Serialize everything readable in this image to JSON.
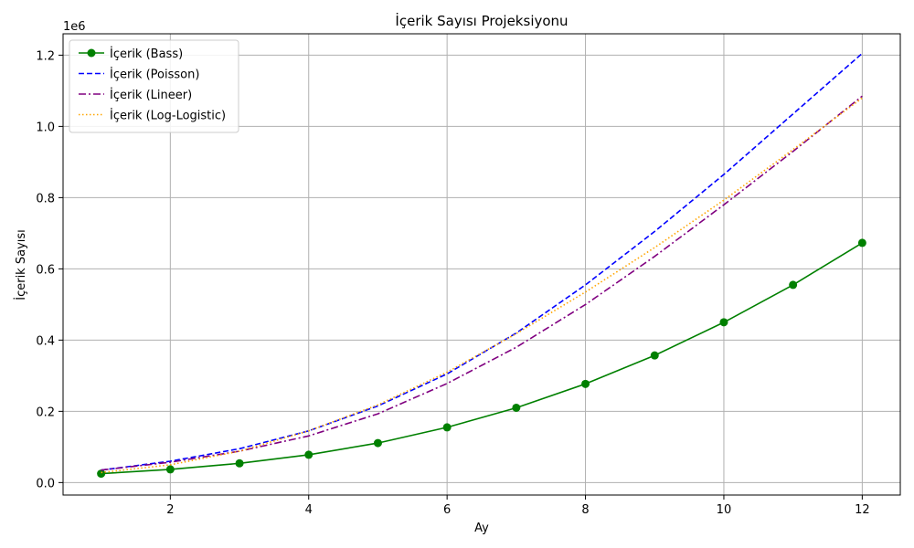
{
  "chart_data": {
    "type": "line",
    "title": "İçerik Sayısı Projeksiyonu",
    "xlabel": "Ay",
    "ylabel": "İçerik Sayısı",
    "y_offset_label": "1e6",
    "xlim": [
      0.45,
      12.55
    ],
    "ylim": [
      -35000,
      1260000
    ],
    "x_ticks": [
      2,
      4,
      6,
      8,
      10,
      12
    ],
    "y_ticks": [
      0,
      200000,
      400000,
      600000,
      800000,
      1000000,
      1200000
    ],
    "y_tick_labels": [
      "0.0",
      "0.2",
      "0.4",
      "0.6",
      "0.8",
      "1.0",
      "1.2"
    ],
    "grid": true,
    "legend_position": "top-left",
    "x": [
      1,
      2,
      3,
      4,
      5,
      6,
      7,
      8,
      9,
      10,
      11,
      12
    ],
    "series": [
      {
        "name": "İçerik (Bass)",
        "color": "#008000",
        "style": "solid",
        "marker": "circle",
        "values": [
          25000,
          37000,
          54000,
          78000,
          111000,
          155000,
          210000,
          277000,
          357000,
          450000,
          555000,
          673000
        ]
      },
      {
        "name": "İçerik (Poisson)",
        "color": "#0000ff",
        "style": "dashed",
        "marker": "none",
        "values": [
          35000,
          60000,
          95000,
          145000,
          215000,
          305000,
          420000,
          555000,
          705000,
          865000,
          1035000,
          1205000
        ]
      },
      {
        "name": "İçerik (Lineer)",
        "color": "#800080",
        "style": "dashdot",
        "marker": "none",
        "values": [
          35000,
          57000,
          88000,
          131000,
          193000,
          278000,
          380000,
          500000,
          635000,
          780000,
          930000,
          1085000
        ]
      },
      {
        "name": "İçerik (Log-Logistic)",
        "color": "#ffa500",
        "style": "dotted",
        "marker": "none",
        "values": [
          28000,
          50000,
          88000,
          145000,
          218000,
          310000,
          418000,
          535000,
          660000,
          793000,
          935000,
          1080000
        ]
      }
    ]
  }
}
